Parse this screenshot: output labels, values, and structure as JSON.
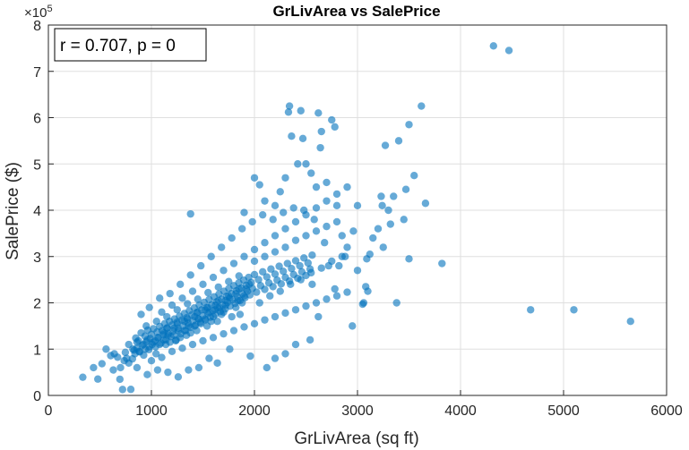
{
  "chart_data": {
    "type": "scatter",
    "title": "GrLivArea vs SalePrice",
    "xlabel": "GrLivArea (sq ft)",
    "ylabel": "SalePrice ($)",
    "xlim": [
      0,
      6000
    ],
    "ylim": [
      0,
      800000
    ],
    "x_ticks": [
      0,
      1000,
      2000,
      3000,
      4000,
      5000,
      6000
    ],
    "y_ticks": [
      0,
      1,
      2,
      3,
      4,
      5,
      6,
      7,
      8
    ],
    "y_multiplier_base": "×10",
    "y_multiplier_exp": "5",
    "grid": true,
    "annotation": "r = 0.707, p = 0",
    "marker_color": "#0072BD",
    "points": [
      [
        334,
        39300
      ],
      [
        438,
        60000
      ],
      [
        480,
        35311
      ],
      [
        520,
        68500
      ],
      [
        605,
        86000
      ],
      [
        630,
        55000
      ],
      [
        672,
        82500
      ],
      [
        694,
        35000
      ],
      [
        720,
        12789
      ],
      [
        736,
        75000
      ],
      [
        747,
        93000
      ],
      [
        760,
        80000
      ],
      [
        780,
        110000
      ],
      [
        800,
        13100
      ],
      [
        816,
        79000
      ],
      [
        832,
        98000
      ],
      [
        848,
        124000
      ],
      [
        860,
        102000
      ],
      [
        874,
        118000
      ],
      [
        886,
        94000
      ],
      [
        900,
        135000
      ],
      [
        912,
        108000
      ],
      [
        925,
        87000
      ],
      [
        938,
        128000
      ],
      [
        950,
        116000
      ],
      [
        964,
        141000
      ],
      [
        975,
        99000
      ],
      [
        988,
        123000
      ],
      [
        1000,
        132000
      ],
      [
        1008,
        110000
      ],
      [
        1020,
        144000
      ],
      [
        1034,
        118000
      ],
      [
        1045,
        90000
      ],
      [
        1056,
        137000
      ],
      [
        1068,
        125000
      ],
      [
        1080,
        149000
      ],
      [
        1092,
        113000
      ],
      [
        1104,
        140000
      ],
      [
        1116,
        131000
      ],
      [
        1128,
        155000
      ],
      [
        1140,
        120000
      ],
      [
        1152,
        146000
      ],
      [
        1164,
        134000
      ],
      [
        1176,
        160000
      ],
      [
        1188,
        127000
      ],
      [
        1200,
        152000
      ],
      [
        1212,
        139000
      ],
      [
        1224,
        165000
      ],
      [
        1236,
        118000
      ],
      [
        1248,
        158000
      ],
      [
        1260,
        145000
      ],
      [
        1272,
        171000
      ],
      [
        1284,
        133000
      ],
      [
        1296,
        163000
      ],
      [
        1308,
        150000
      ],
      [
        1320,
        177000
      ],
      [
        1332,
        140000
      ],
      [
        1344,
        168000
      ],
      [
        1356,
        156000
      ],
      [
        1368,
        183000
      ],
      [
        1380,
        147000
      ],
      [
        1392,
        174000
      ],
      [
        1404,
        161000
      ],
      [
        1416,
        189000
      ],
      [
        1428,
        152000
      ],
      [
        1440,
        179000
      ],
      [
        1452,
        166000
      ],
      [
        1464,
        195000
      ],
      [
        1476,
        158000
      ],
      [
        1488,
        185000
      ],
      [
        1500,
        172000
      ],
      [
        1512,
        201000
      ],
      [
        1524,
        163000
      ],
      [
        1536,
        190000
      ],
      [
        1548,
        177000
      ],
      [
        1560,
        207000
      ],
      [
        1572,
        169000
      ],
      [
        1584,
        196000
      ],
      [
        1596,
        183000
      ],
      [
        1608,
        213000
      ],
      [
        1620,
        175000
      ],
      [
        1632,
        202000
      ],
      [
        1644,
        189000
      ],
      [
        1656,
        219000
      ],
      [
        1668,
        181000
      ],
      [
        1680,
        208000
      ],
      [
        1692,
        195000
      ],
      [
        1704,
        225000
      ],
      [
        1716,
        187000
      ],
      [
        1728,
        214000
      ],
      [
        1740,
        201000
      ],
      [
        1752,
        231000
      ],
      [
        1764,
        193000
      ],
      [
        1776,
        220000
      ],
      [
        1788,
        207000
      ],
      [
        1800,
        237000
      ],
      [
        1812,
        199000
      ],
      [
        1824,
        226000
      ],
      [
        1836,
        213000
      ],
      [
        1848,
        243000
      ],
      [
        1860,
        205000
      ],
      [
        1872,
        232000
      ],
      [
        1884,
        219000
      ],
      [
        1896,
        249000
      ],
      [
        1908,
        211000
      ],
      [
        1920,
        238000
      ],
      [
        1932,
        225000
      ],
      [
        1944,
        255000
      ],
      [
        1956,
        217000
      ],
      [
        1968,
        244000
      ],
      [
        1980,
        231000
      ],
      [
        2000,
        261000
      ],
      [
        2020,
        223000
      ],
      [
        2040,
        250000
      ],
      [
        2060,
        237000
      ],
      [
        2080,
        267000
      ],
      [
        2100,
        229000
      ],
      [
        2120,
        256000
      ],
      [
        2140,
        243000
      ],
      [
        2160,
        273000
      ],
      [
        2180,
        235000
      ],
      [
        2200,
        262000
      ],
      [
        2220,
        249000
      ],
      [
        2240,
        279000
      ],
      [
        2260,
        241000
      ],
      [
        2280,
        268000
      ],
      [
        2300,
        255000
      ],
      [
        2320,
        285000
      ],
      [
        2340,
        247000
      ],
      [
        2360,
        274000
      ],
      [
        2380,
        261000
      ],
      [
        2400,
        291000
      ],
      [
        2420,
        253000
      ],
      [
        2440,
        280000
      ],
      [
        2460,
        267000
      ],
      [
        2480,
        297000
      ],
      [
        2500,
        259000
      ],
      [
        2520,
        286000
      ],
      [
        2540,
        273000
      ],
      [
        2560,
        303000
      ],
      [
        1000,
        75000
      ],
      [
        1100,
        82000
      ],
      [
        1200,
        95000
      ],
      [
        1300,
        102000
      ],
      [
        1400,
        110000
      ],
      [
        1500,
        118000
      ],
      [
        1600,
        125000
      ],
      [
        1700,
        133000
      ],
      [
        1800,
        140000
      ],
      [
        1900,
        148000
      ],
      [
        2000,
        155000
      ],
      [
        2100,
        163000
      ],
      [
        2200,
        170000
      ],
      [
        2300,
        178000
      ],
      [
        2400,
        185000
      ],
      [
        2500,
        193000
      ],
      [
        2600,
        200000
      ],
      [
        2700,
        208000
      ],
      [
        2800,
        215000
      ],
      [
        2900,
        223000
      ],
      [
        1100,
        180000
      ],
      [
        1200,
        195000
      ],
      [
        1300,
        210000
      ],
      [
        1400,
        225000
      ],
      [
        1500,
        240000
      ],
      [
        1600,
        255000
      ],
      [
        1700,
        270000
      ],
      [
        1800,
        285000
      ],
      [
        1900,
        300000
      ],
      [
        2000,
        315000
      ],
      [
        2100,
        330000
      ],
      [
        2200,
        345000
      ],
      [
        2300,
        360000
      ],
      [
        2400,
        375000
      ],
      [
        2500,
        390000
      ],
      [
        2600,
        405000
      ],
      [
        2700,
        420000
      ],
      [
        2800,
        435000
      ],
      [
        2900,
        450000
      ],
      [
        950,
        150000
      ],
      [
        1050,
        160000
      ],
      [
        1150,
        170000
      ],
      [
        1250,
        185000
      ],
      [
        1350,
        198000
      ],
      [
        1450,
        208000
      ],
      [
        1550,
        222000
      ],
      [
        1650,
        234000
      ],
      [
        1750,
        246000
      ],
      [
        1850,
        258000
      ],
      [
        1380,
        392000
      ],
      [
        1900,
        395000
      ],
      [
        2000,
        470000
      ],
      [
        2050,
        455000
      ],
      [
        2100,
        420000
      ],
      [
        2200,
        410000
      ],
      [
        2250,
        440000
      ],
      [
        2300,
        470000
      ],
      [
        2330,
        612000
      ],
      [
        2340,
        625000
      ],
      [
        2360,
        560000
      ],
      [
        2420,
        500000
      ],
      [
        2450,
        615000
      ],
      [
        2470,
        555000
      ],
      [
        2500,
        500000
      ],
      [
        2550,
        480000
      ],
      [
        2600,
        450000
      ],
      [
        2620,
        610000
      ],
      [
        2640,
        535000
      ],
      [
        2650,
        570000
      ],
      [
        2700,
        460000
      ],
      [
        2750,
        595000
      ],
      [
        2780,
        580000
      ],
      [
        2800,
        410000
      ],
      [
        2850,
        345000
      ],
      [
        2900,
        320000
      ],
      [
        2950,
        150000
      ],
      [
        3000,
        410000
      ],
      [
        3050,
        197000
      ],
      [
        3060,
        200000
      ],
      [
        3080,
        235000
      ],
      [
        3090,
        295000
      ],
      [
        3100,
        225000
      ],
      [
        3120,
        305000
      ],
      [
        3150,
        340000
      ],
      [
        3200,
        360000
      ],
      [
        3230,
        430000
      ],
      [
        3240,
        410000
      ],
      [
        3250,
        320000
      ],
      [
        3270,
        540000
      ],
      [
        3300,
        400000
      ],
      [
        3320,
        370000
      ],
      [
        3350,
        430000
      ],
      [
        3380,
        200000
      ],
      [
        3400,
        550000
      ],
      [
        3450,
        380000
      ],
      [
        3470,
        445000
      ],
      [
        3500,
        295000
      ],
      [
        3500,
        585000
      ],
      [
        3550,
        475000
      ],
      [
        3620,
        625000
      ],
      [
        3660,
        415000
      ],
      [
        3820,
        285000
      ],
      [
        4320,
        755000
      ],
      [
        4470,
        745000
      ],
      [
        4680,
        185000
      ],
      [
        5100,
        185000
      ],
      [
        5650,
        160000
      ],
      [
        2960,
        355000
      ],
      [
        2880,
        300000
      ],
      [
        2720,
        280000
      ],
      [
        2560,
        240000
      ],
      [
        2680,
        330000
      ],
      [
        2820,
        280000
      ],
      [
        3000,
        270000
      ],
      [
        2780,
        230000
      ],
      [
        2620,
        170000
      ],
      [
        2540,
        120000
      ],
      [
        2400,
        110000
      ],
      [
        2300,
        90000
      ],
      [
        2200,
        80000
      ],
      [
        2120,
        60000
      ],
      [
        1960,
        85000
      ],
      [
        1760,
        100000
      ],
      [
        1640,
        70000
      ],
      [
        1560,
        80000
      ],
      [
        1460,
        60000
      ],
      [
        1360,
        55000
      ],
      [
        1260,
        40000
      ],
      [
        1160,
        50000
      ],
      [
        1060,
        55000
      ],
      [
        960,
        45000
      ],
      [
        860,
        60000
      ],
      [
        780,
        70000
      ],
      [
        700,
        60000
      ],
      [
        640,
        90000
      ],
      [
        560,
        100000
      ],
      [
        900,
        175000
      ],
      [
        980,
        190000
      ],
      [
        1080,
        210000
      ],
      [
        1180,
        220000
      ],
      [
        1280,
        240000
      ],
      [
        1380,
        260000
      ],
      [
        1480,
        280000
      ],
      [
        1580,
        300000
      ],
      [
        1680,
        320000
      ],
      [
        1780,
        340000
      ],
      [
        1880,
        360000
      ],
      [
        1980,
        375000
      ],
      [
        2080,
        390000
      ],
      [
        2180,
        380000
      ],
      [
        2280,
        395000
      ],
      [
        2380,
        405000
      ],
      [
        2480,
        400000
      ],
      [
        2580,
        380000
      ],
      [
        1700,
        180000
      ],
      [
        1720,
        195000
      ],
      [
        1760,
        210000
      ],
      [
        1780,
        170000
      ],
      [
        1820,
        190000
      ],
      [
        1840,
        205000
      ],
      [
        1860,
        175000
      ],
      [
        1880,
        200000
      ],
      [
        1900,
        215000
      ],
      [
        1600,
        170000
      ],
      [
        1620,
        185000
      ],
      [
        1640,
        160000
      ],
      [
        1660,
        190000
      ],
      [
        1680,
        175000
      ],
      [
        1520,
        165000
      ],
      [
        1540,
        150000
      ],
      [
        1560,
        180000
      ],
      [
        1580,
        160000
      ],
      [
        1420,
        150000
      ],
      [
        1440,
        140000
      ],
      [
        1460,
        165000
      ],
      [
        1480,
        155000
      ],
      [
        1320,
        140000
      ],
      [
        1340,
        130000
      ],
      [
        1360,
        150000
      ],
      [
        1380,
        135000
      ],
      [
        1220,
        130000
      ],
      [
        1240,
        120000
      ],
      [
        1260,
        140000
      ],
      [
        1280,
        125000
      ],
      [
        1120,
        120000
      ],
      [
        1140,
        110000
      ],
      [
        1160,
        130000
      ],
      [
        1180,
        115000
      ],
      [
        1020,
        115000
      ],
      [
        1040,
        105000
      ],
      [
        1060,
        125000
      ],
      [
        1080,
        110000
      ],
      [
        920,
        110000
      ],
      [
        940,
        100000
      ],
      [
        960,
        120000
      ],
      [
        980,
        105000
      ],
      [
        820,
        100000
      ],
      [
        840,
        90000
      ],
      [
        860,
        115000
      ],
      [
        880,
        95000
      ],
      [
        1150,
        145000
      ],
      [
        1250,
        155000
      ],
      [
        1350,
        165000
      ],
      [
        1450,
        180000
      ],
      [
        1550,
        190000
      ],
      [
        1650,
        205000
      ],
      [
        1750,
        215000
      ],
      [
        1850,
        230000
      ],
      [
        1950,
        240000
      ],
      [
        1120,
        135000
      ],
      [
        1220,
        145000
      ],
      [
        1320,
        160000
      ],
      [
        1420,
        170000
      ],
      [
        1520,
        185000
      ],
      [
        1620,
        195000
      ],
      [
        1720,
        205000
      ],
      [
        1820,
        220000
      ],
      [
        1920,
        230000
      ],
      [
        2050,
        200000
      ],
      [
        2150,
        215000
      ],
      [
        2250,
        225000
      ],
      [
        2350,
        240000
      ],
      [
        2450,
        250000
      ],
      [
        2550,
        265000
      ],
      [
        2650,
        275000
      ],
      [
        2750,
        290000
      ],
      [
        2850,
        300000
      ],
      [
        2000,
        290000
      ],
      [
        2100,
        300000
      ],
      [
        2200,
        310000
      ],
      [
        2300,
        320000
      ],
      [
        2400,
        335000
      ],
      [
        2500,
        345000
      ],
      [
        2600,
        355000
      ],
      [
        2700,
        365000
      ],
      [
        2800,
        375000
      ]
    ]
  }
}
